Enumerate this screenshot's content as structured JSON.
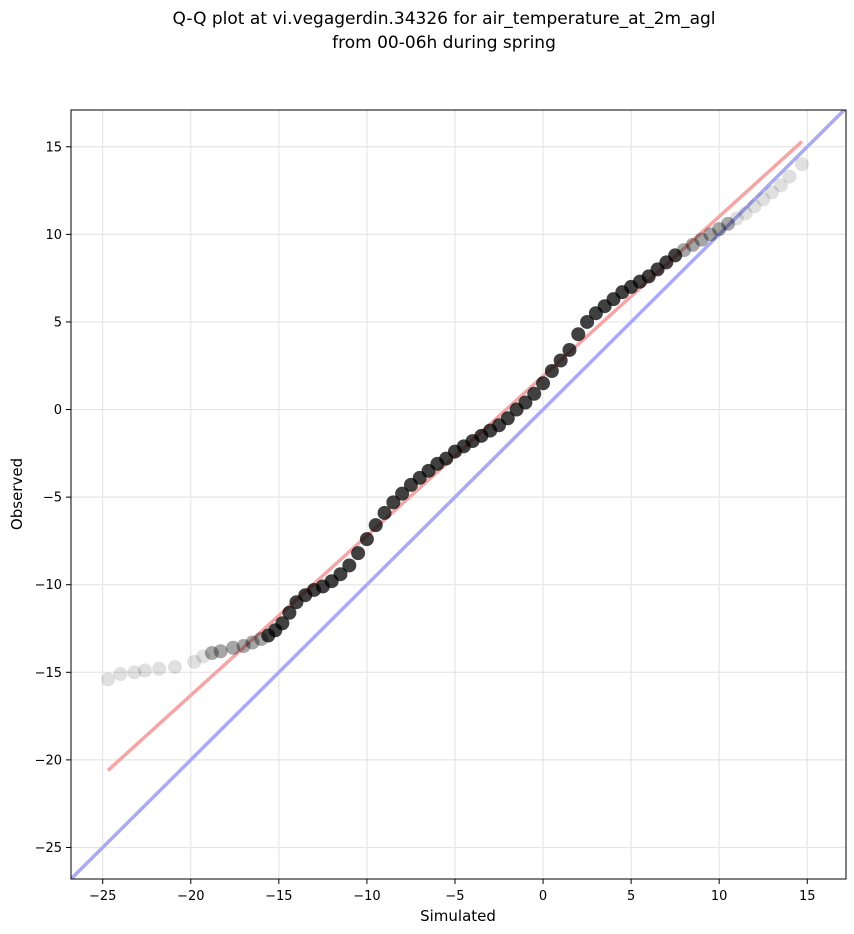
{
  "chart_data": {
    "type": "scatter",
    "title": "Q-Q plot at vi.vegagerdin.34326 for air_temperature_at_2m_agl",
    "subtitle": "from 00-06h during spring",
    "xlabel": "Simulated",
    "ylabel": "Observed",
    "xlim": [
      -26.8,
      17.2
    ],
    "ylim": [
      -26.8,
      17.1
    ],
    "xticks": [
      -25,
      -20,
      -15,
      -10,
      -5,
      0,
      5,
      10,
      15
    ],
    "yticks": [
      -25,
      -20,
      -15,
      -10,
      -5,
      0,
      5,
      10,
      15
    ],
    "grid": true,
    "quantiles": {
      "x": [
        -24.7,
        -24.0,
        -23.2,
        -22.6,
        -21.8,
        -20.9,
        -19.8,
        -19.3,
        -18.8,
        -18.3,
        -17.6,
        -17.0,
        -16.5,
        -16.0,
        -15.6,
        -15.2,
        -14.8,
        -14.4,
        -14.0,
        -13.5,
        -13.0,
        -12.5,
        -12.0,
        -11.5,
        -11.0,
        -10.5,
        -10.0,
        -9.5,
        -9.0,
        -8.5,
        -8.0,
        -7.5,
        -7.0,
        -6.5,
        -6.0,
        -5.5,
        -5.0,
        -4.5,
        -4.0,
        -3.5,
        -3.0,
        -2.5,
        -2.0,
        -1.5,
        -1.0,
        -0.5,
        0.0,
        0.5,
        1.0,
        1.5,
        2.0,
        2.5,
        3.0,
        3.5,
        4.0,
        4.5,
        5.0,
        5.5,
        6.0,
        6.5,
        7.0,
        7.5,
        8.0,
        8.5,
        9.0,
        9.5,
        10.0,
        10.5,
        11.0,
        11.5,
        12.0,
        12.5,
        13.0,
        13.5,
        14.0,
        14.7
      ],
      "y": [
        -15.4,
        -15.1,
        -15.0,
        -14.9,
        -14.8,
        -14.7,
        -14.4,
        -14.1,
        -13.9,
        -13.8,
        -13.6,
        -13.5,
        -13.3,
        -13.1,
        -12.9,
        -12.6,
        -12.2,
        -11.6,
        -11.0,
        -10.6,
        -10.3,
        -10.1,
        -9.8,
        -9.4,
        -8.9,
        -8.2,
        -7.4,
        -6.6,
        -5.9,
        -5.3,
        -4.8,
        -4.3,
        -3.9,
        -3.5,
        -3.1,
        -2.8,
        -2.4,
        -2.1,
        -1.8,
        -1.5,
        -1.2,
        -0.9,
        -0.5,
        0.0,
        0.4,
        0.9,
        1.5,
        2.2,
        2.8,
        3.4,
        4.3,
        5.0,
        5.5,
        5.9,
        6.3,
        6.7,
        7.0,
        7.3,
        7.6,
        8.0,
        8.4,
        8.8,
        9.1,
        9.4,
        9.7,
        10.0,
        10.3,
        10.6,
        10.9,
        11.2,
        11.6,
        12.0,
        12.4,
        12.8,
        13.3,
        14.0
      ]
    },
    "fit_line": {
      "x": [
        -24.7,
        14.7
      ],
      "y": [
        -20.6,
        15.3
      ],
      "color": "#f4a6a6"
    },
    "identity_line": {
      "x": [
        -26.8,
        17.2
      ],
      "y": [
        -26.8,
        17.2
      ],
      "color": "#a9a9f5"
    },
    "marker_color": "#000000"
  }
}
